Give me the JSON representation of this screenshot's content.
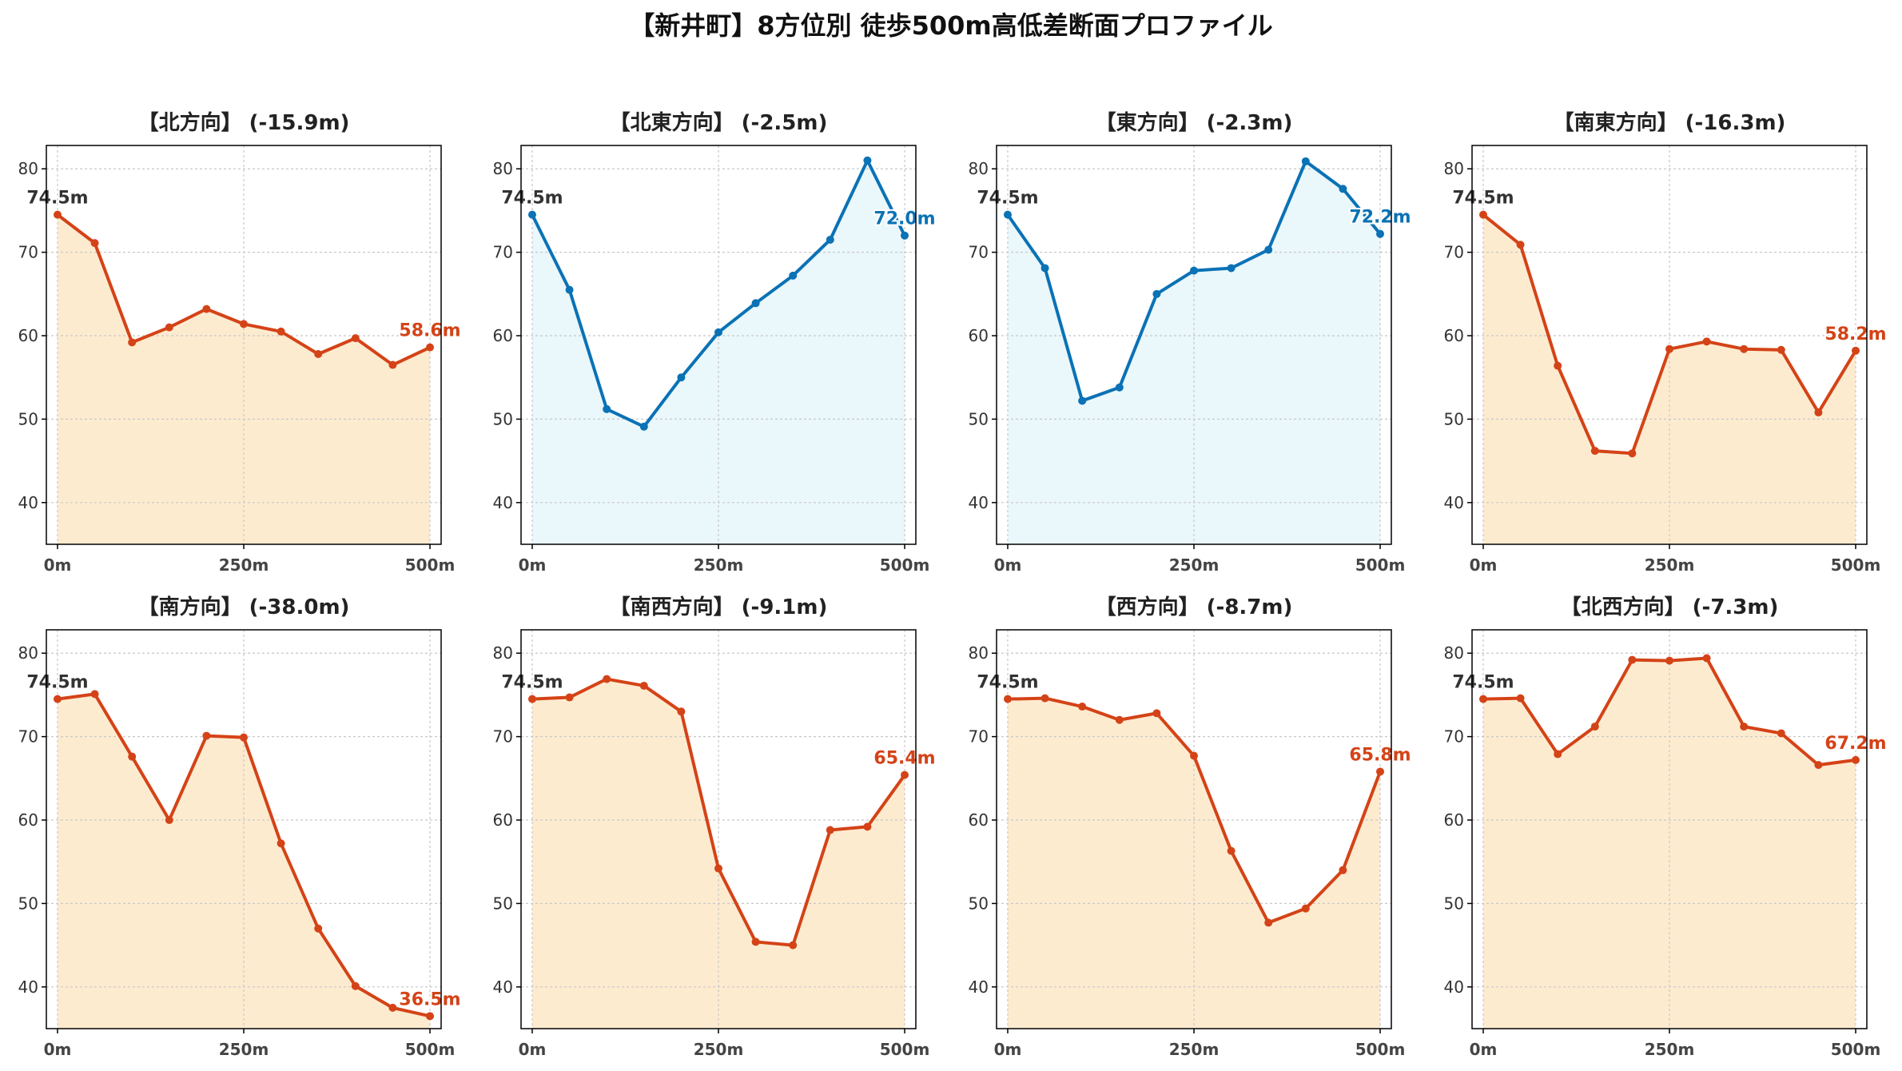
{
  "figure_title": "【新井町】8方位別 徒歩500m高低差断面プロファイル",
  "colors": {
    "descent_line": "#d44317",
    "descent_fill": "#fdebd0",
    "ascent_line": "#0a72b5",
    "ascent_fill": "#eaf7fb",
    "start_label": "#333333",
    "grid": "#c8c8c8",
    "axis": "#000000"
  },
  "chart_data": [
    {
      "type": "line",
      "title": "【北方向】 (-15.9m)",
      "x": [
        0,
        50,
        100,
        150,
        200,
        250,
        300,
        350,
        400,
        450,
        500
      ],
      "y": [
        74.5,
        71.1,
        59.2,
        61.0,
        63.2,
        61.4,
        60.5,
        57.8,
        59.7,
        56.5,
        58.6
      ],
      "start_label": "74.5m",
      "end_label": "58.6m",
      "tone": "descent",
      "xticks": [
        "0m",
        "250m",
        "500m"
      ],
      "yticks": [
        "40",
        "50",
        "60",
        "70",
        "80"
      ],
      "ylim": [
        35,
        82.8
      ],
      "xlim": [
        -15,
        515
      ],
      "grid": true
    },
    {
      "type": "line",
      "title": "【北東方向】 (-2.5m)",
      "x": [
        0,
        50,
        100,
        150,
        200,
        250,
        300,
        350,
        400,
        450,
        500
      ],
      "y": [
        74.5,
        65.5,
        51.2,
        49.1,
        55.0,
        60.4,
        63.9,
        67.2,
        71.5,
        81.0,
        72.0
      ],
      "start_label": "74.5m",
      "end_label": "72.0m",
      "tone": "ascent",
      "xticks": [
        "0m",
        "250m",
        "500m"
      ],
      "yticks": [
        "40",
        "50",
        "60",
        "70",
        "80"
      ],
      "ylim": [
        35,
        82.8
      ],
      "xlim": [
        -15,
        515
      ],
      "grid": true
    },
    {
      "type": "line",
      "title": "【東方向】 (-2.3m)",
      "x": [
        0,
        50,
        100,
        150,
        200,
        250,
        300,
        350,
        400,
        450,
        500
      ],
      "y": [
        74.5,
        68.1,
        52.2,
        53.8,
        65.0,
        67.8,
        68.1,
        70.3,
        80.9,
        77.6,
        72.2
      ],
      "start_label": "74.5m",
      "end_label": "72.2m",
      "tone": "ascent",
      "xticks": [
        "0m",
        "250m",
        "500m"
      ],
      "yticks": [
        "40",
        "50",
        "60",
        "70",
        "80"
      ],
      "ylim": [
        35,
        82.8
      ],
      "xlim": [
        -15,
        515
      ],
      "grid": true
    },
    {
      "type": "line",
      "title": "【南東方向】 (-16.3m)",
      "x": [
        0,
        50,
        100,
        150,
        200,
        250,
        300,
        350,
        400,
        450,
        500
      ],
      "y": [
        74.5,
        70.9,
        56.4,
        46.2,
        45.9,
        58.4,
        59.3,
        58.4,
        58.3,
        50.8,
        58.2
      ],
      "start_label": "74.5m",
      "end_label": "58.2m",
      "tone": "descent",
      "xticks": [
        "0m",
        "250m",
        "500m"
      ],
      "yticks": [
        "40",
        "50",
        "60",
        "70",
        "80"
      ],
      "ylim": [
        35,
        82.8
      ],
      "xlim": [
        -15,
        515
      ],
      "grid": true
    },
    {
      "type": "line",
      "title": "【南方向】 (-38.0m)",
      "x": [
        0,
        50,
        100,
        150,
        200,
        250,
        300,
        350,
        400,
        450,
        500
      ],
      "y": [
        74.5,
        75.1,
        67.6,
        60.0,
        70.1,
        69.9,
        57.2,
        47.0,
        40.1,
        37.5,
        36.5
      ],
      "start_label": "74.5m",
      "end_label": "36.5m",
      "tone": "descent",
      "xticks": [
        "0m",
        "250m",
        "500m"
      ],
      "yticks": [
        "40",
        "50",
        "60",
        "70",
        "80"
      ],
      "ylim": [
        35,
        82.8
      ],
      "xlim": [
        -15,
        515
      ],
      "grid": true
    },
    {
      "type": "line",
      "title": "【南西方向】 (-9.1m)",
      "x": [
        0,
        50,
        100,
        150,
        200,
        250,
        300,
        350,
        400,
        450,
        500
      ],
      "y": [
        74.5,
        74.7,
        76.9,
        76.1,
        73.0,
        54.2,
        45.4,
        45.0,
        58.8,
        59.2,
        65.4
      ],
      "start_label": "74.5m",
      "end_label": "65.4m",
      "tone": "descent",
      "xticks": [
        "0m",
        "250m",
        "500m"
      ],
      "yticks": [
        "40",
        "50",
        "60",
        "70",
        "80"
      ],
      "ylim": [
        35,
        82.8
      ],
      "xlim": [
        -15,
        515
      ],
      "grid": true
    },
    {
      "type": "line",
      "title": "【西方向】 (-8.7m)",
      "x": [
        0,
        50,
        100,
        150,
        200,
        250,
        300,
        350,
        400,
        450,
        500
      ],
      "y": [
        74.5,
        74.6,
        73.6,
        72.0,
        72.8,
        67.7,
        56.3,
        47.7,
        49.4,
        54.0,
        65.8
      ],
      "start_label": "74.5m",
      "end_label": "65.8m",
      "tone": "descent",
      "xticks": [
        "0m",
        "250m",
        "500m"
      ],
      "yticks": [
        "40",
        "50",
        "60",
        "70",
        "80"
      ],
      "ylim": [
        35,
        82.8
      ],
      "xlim": [
        -15,
        515
      ],
      "grid": true
    },
    {
      "type": "line",
      "title": "【北西方向】 (-7.3m)",
      "x": [
        0,
        50,
        100,
        150,
        200,
        250,
        300,
        350,
        400,
        450,
        500
      ],
      "y": [
        74.5,
        74.6,
        67.9,
        71.2,
        79.2,
        79.1,
        79.4,
        71.2,
        70.4,
        66.6,
        67.2
      ],
      "start_label": "74.5m",
      "end_label": "67.2m",
      "tone": "descent",
      "xticks": [
        "0m",
        "250m",
        "500m"
      ],
      "yticks": [
        "40",
        "50",
        "60",
        "70",
        "80"
      ],
      "ylim": [
        35,
        82.8
      ],
      "xlim": [
        -15,
        515
      ],
      "grid": true
    }
  ]
}
